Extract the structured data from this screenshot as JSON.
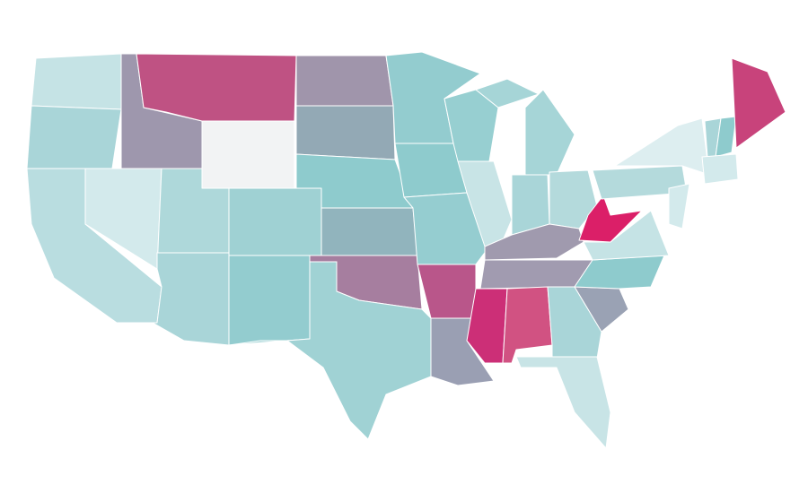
{
  "map": {
    "fills": [
      "#c5e3e5",
      "#a9d5d8",
      "#b9dde0",
      "#d3eaec",
      "#9e97ad",
      "#bf5283",
      "#f2f3f4",
      "#aed8da",
      "#a9d5d8",
      "#9fd1d3",
      "#93cccf",
      "#a095ab",
      "#93a9b5",
      "#8ecbcd",
      "#91b4bd",
      "#a67e9f",
      "#a0d2d4",
      "#93cccf",
      "#8ecbcd",
      "#95cdd0",
      "#b9568a",
      "#9a9fb3",
      "#97cfd1",
      "#c8e4e6",
      "#a6d5d7",
      "#a6d5d7",
      "#a9d5d8",
      "#b4dadc",
      "#a09aae",
      "#a19bb0",
      "#cc2f77",
      "#d15282",
      "#a9d5d8",
      "#c8e4e6",
      "#9aa2b4",
      "#8ecbcd",
      "#c5e3e5",
      "#db1f68",
      "#b4dadc",
      "#ddeef0",
      "#a9d5d8",
      "#8ecbcd",
      "#c8437b",
      "#d3eaec",
      "#d3eaec"
    ]
  }
}
